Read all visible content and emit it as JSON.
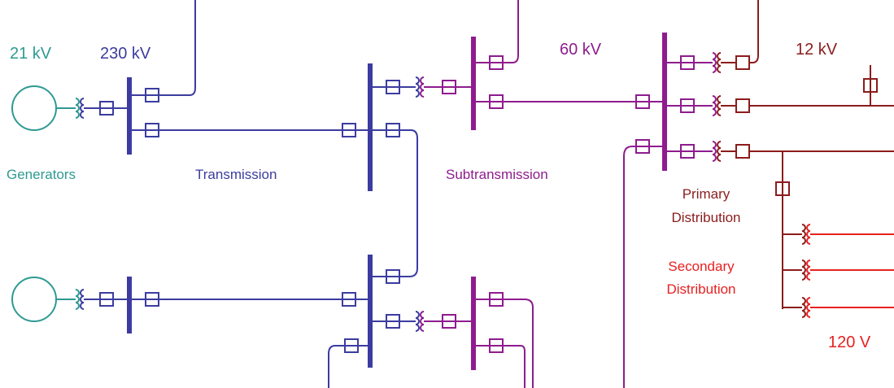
{
  "voltage_levels": [
    "21 kV",
    "230 kV",
    "60 kV",
    "12 kV",
    "120 V"
  ],
  "sections": {
    "generators": [
      "Generators"
    ],
    "transmission": [
      "Transmission"
    ],
    "subtransmission": [
      "Subtransmission"
    ],
    "primary": [
      "Primary",
      "Distribution"
    ],
    "secondary": [
      "Secondary",
      "Distribution"
    ]
  }
}
